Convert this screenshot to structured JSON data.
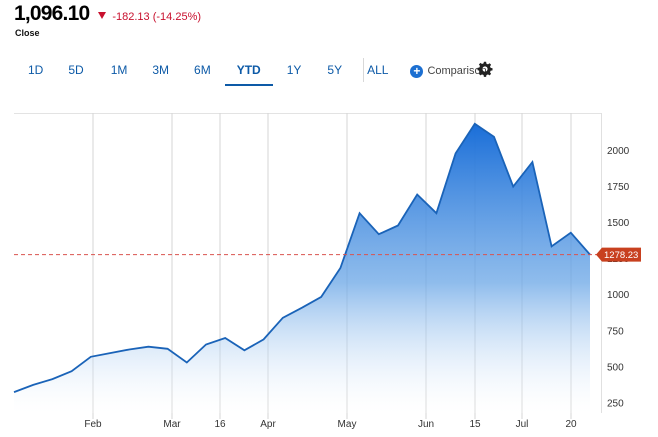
{
  "quote": {
    "price": "1,096.10",
    "change": "-182.13 (-14.25%)",
    "close_label": "Close"
  },
  "ranges": [
    "1D",
    "5D",
    "1M",
    "3M",
    "6M",
    "YTD",
    "1Y",
    "5Y",
    "ALL"
  ],
  "active_range": "YTD",
  "comparison_label": "Comparison",
  "icons": {
    "comparison": "plus-circle-icon",
    "settings": "gear-icon",
    "change_direction": "down-triangle-icon"
  },
  "colors": {
    "accent": "#0d5aa7",
    "negative": "#c8102e",
    "series": "#1a63b8",
    "reference_line": "#d9534f",
    "last_badge": "#c8401f"
  },
  "chart_data": {
    "type": "area",
    "x_labels": [
      "Feb",
      "Mar",
      "16",
      "Apr",
      "May",
      "Jun",
      "15",
      "Jul",
      "20"
    ],
    "y_ticks": [
      250,
      500,
      750,
      1000,
      1250,
      1500,
      1750,
      2000
    ],
    "y_tick_labels": [
      "250",
      "500",
      "750",
      "1000",
      "1250",
      "1500",
      "1750",
      "2000"
    ],
    "ylim": [
      180,
      2260
    ],
    "reference_value": 1278.23,
    "reference_label": "1278.23",
    "series": [
      {
        "values": [
          325,
          375,
          415,
          470,
          570,
          595,
          620,
          640,
          625,
          530,
          655,
          700,
          615,
          690,
          840,
          910,
          985,
          1185,
          1565,
          1420,
          1480,
          1695,
          1565,
          1980,
          2185,
          2095,
          1750,
          1920,
          1335,
          1430,
          1278
        ]
      }
    ]
  }
}
